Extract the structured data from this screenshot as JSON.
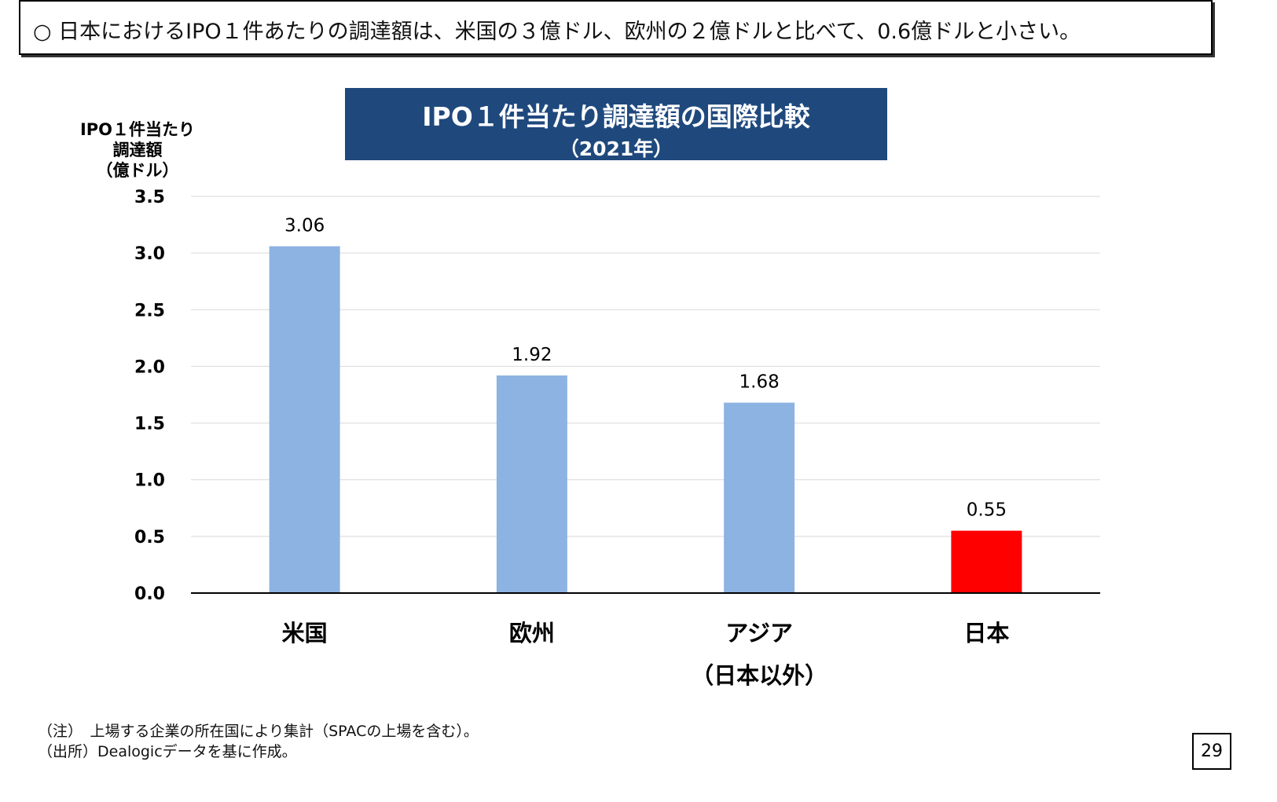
{
  "summary": {
    "bullet": "○",
    "text": "日本におけるIPO１件あたりの調達額は、米国の３億ドル、欧州の２億ドルと比べて、0.6億ドルと小さい。"
  },
  "chart_data": {
    "type": "bar",
    "title": "IPO１件当たり調達額の国際比較",
    "subtitle": "（2021年）",
    "ylabel": [
      "IPO１件当たり",
      "調達額",
      "（億ドル）"
    ],
    "xlabel": "",
    "ylim": [
      0,
      3.5
    ],
    "yticks": [
      "0.0",
      "0.5",
      "1.0",
      "1.5",
      "2.0",
      "2.5",
      "3.0",
      "3.5"
    ],
    "categories": [
      [
        "米国"
      ],
      [
        "欧州"
      ],
      [
        "アジア",
        "（日本以外）"
      ],
      [
        "日本"
      ]
    ],
    "values": [
      3.06,
      1.92,
      1.68,
      0.55
    ],
    "value_labels": [
      "3.06",
      "1.92",
      "1.68",
      "0.55"
    ],
    "bar_colors": [
      "#8db3e2",
      "#8db3e2",
      "#8db3e2",
      "#ff0000"
    ],
    "grid": true
  },
  "notes": [
    "（注）　上場する企業の所在国により集計（SPACの上場を含む）。",
    "（出所）Dealogicデータを基に作成。"
  ],
  "page_number": "29"
}
